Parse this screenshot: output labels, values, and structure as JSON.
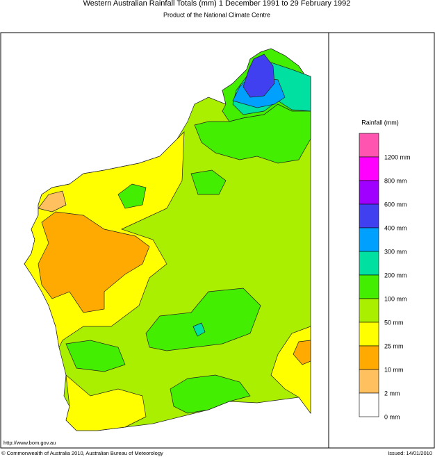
{
  "header": {
    "title": "Western Australian Rainfall Totals (mm) 1 December 1991 to 29 February 1992",
    "subtitle": "Product of the National Climate Centre"
  },
  "legend": {
    "title": "Rainfall (mm)",
    "items": [
      {
        "label": "1200 mm",
        "color": "#ff55b0"
      },
      {
        "label": "800 mm",
        "color": "#ff00ff"
      },
      {
        "label": "600 mm",
        "color": "#a000ff"
      },
      {
        "label": "400 mm",
        "color": "#4040f0"
      },
      {
        "label": "300 mm",
        "color": "#00a0ff"
      },
      {
        "label": "200 mm",
        "color": "#00e0a0"
      },
      {
        "label": "100 mm",
        "color": "#44ee00"
      },
      {
        "label": "50 mm",
        "color": "#aaee00"
      },
      {
        "label": "25 mm",
        "color": "#ffff00"
      },
      {
        "label": "10 mm",
        "color": "#ffaa00"
      },
      {
        "label": "2 mm",
        "color": "#ffc060"
      },
      {
        "label": "0 mm",
        "color": "#ffffff"
      }
    ]
  },
  "footer": {
    "url": "http://www.bom.gov.au",
    "copyright": "© Commonwealth of Australia 2010, Australian Bureau of Meteorology",
    "issued": "Issued: 14/01/2010"
  }
}
